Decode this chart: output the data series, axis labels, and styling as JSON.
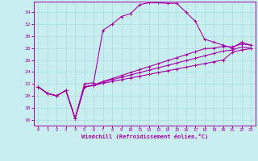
{
  "xlabel": "Windchill (Refroidissement éolien,°C)",
  "bg_color": "#c8eef0",
  "grid_color": "#aadddd",
  "line_color": "#aa00aa",
  "xlim": [
    -0.5,
    23.5
  ],
  "ylim": [
    15.0,
    35.8
  ],
  "xticks": [
    0,
    1,
    2,
    3,
    4,
    5,
    6,
    7,
    8,
    9,
    10,
    11,
    12,
    13,
    14,
    15,
    16,
    17,
    18,
    19,
    20,
    21,
    22,
    23
  ],
  "yticks": [
    16,
    18,
    20,
    22,
    24,
    26,
    28,
    30,
    32,
    34
  ],
  "curve1_x": [
    0,
    1,
    2,
    3,
    4,
    5,
    6,
    7,
    8,
    9,
    10,
    11,
    12,
    13,
    14,
    15,
    16,
    17,
    18,
    19,
    20,
    21,
    22,
    23
  ],
  "curve1_y": [
    21.5,
    20.4,
    20.0,
    20.9,
    16.2,
    22.0,
    22.2,
    31.0,
    32.0,
    33.3,
    33.8,
    35.3,
    35.6,
    35.6,
    35.5,
    35.5,
    34.0,
    32.5,
    29.5,
    29.0,
    28.5,
    28.0,
    29.0,
    28.5
  ],
  "curve2_x": [
    0,
    1,
    2,
    3,
    4,
    5,
    6,
    7,
    8,
    9,
    10,
    11,
    12,
    13,
    14,
    15,
    16,
    17,
    18,
    19,
    20,
    21,
    22,
    23
  ],
  "curve2_y": [
    21.5,
    20.4,
    20.0,
    20.9,
    16.2,
    21.5,
    21.8,
    22.4,
    22.9,
    23.4,
    23.9,
    24.4,
    24.9,
    25.4,
    25.9,
    26.4,
    26.9,
    27.4,
    27.9,
    28.0,
    28.3,
    28.2,
    28.7,
    28.5
  ],
  "curve3_x": [
    0,
    1,
    2,
    3,
    4,
    5,
    6,
    7,
    8,
    9,
    10,
    11,
    12,
    13,
    14,
    15,
    16,
    17,
    18,
    19,
    20,
    21,
    22,
    23
  ],
  "curve3_y": [
    21.5,
    20.4,
    20.0,
    20.9,
    16.2,
    21.5,
    21.8,
    22.3,
    22.7,
    23.1,
    23.5,
    23.9,
    24.3,
    24.7,
    25.1,
    25.5,
    25.9,
    26.3,
    26.7,
    27.1,
    27.5,
    27.7,
    28.2,
    28.0
  ],
  "curve4_x": [
    0,
    1,
    2,
    3,
    4,
    5,
    6,
    7,
    8,
    9,
    10,
    11,
    12,
    13,
    14,
    15,
    16,
    17,
    18,
    19,
    20,
    21,
    22,
    23
  ],
  "curve4_y": [
    21.5,
    20.4,
    20.0,
    20.9,
    16.2,
    21.5,
    21.7,
    22.1,
    22.4,
    22.7,
    23.0,
    23.3,
    23.6,
    23.9,
    24.2,
    24.5,
    24.8,
    25.1,
    25.4,
    25.7,
    26.0,
    27.3,
    27.7,
    27.9
  ]
}
